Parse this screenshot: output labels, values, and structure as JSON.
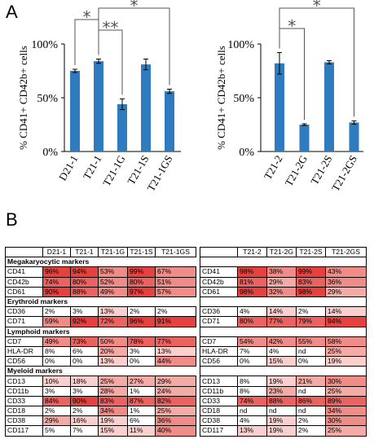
{
  "panels": {
    "a": "A",
    "b": "B"
  },
  "chart_data": [
    {
      "type": "bar",
      "ylabel": "% CD41+ CD42b+ cells",
      "yticks": [
        "0%",
        "50%",
        "100%"
      ],
      "ylim": [
        0,
        100
      ],
      "categories": [
        "D21-1",
        "T21-1",
        "T21-1G",
        "T21-1S",
        "T21-1GS"
      ],
      "values": [
        75,
        84,
        44,
        81,
        56
      ],
      "errors": [
        1.5,
        2,
        5,
        5,
        2
      ],
      "color": "#2e7bbf",
      "significance": [
        {
          "from": "T21-1",
          "to": "T21-1G",
          "label": "**"
        },
        {
          "from": "D21-1",
          "to": "T21-1",
          "label": "*"
        },
        {
          "from": "T21-1",
          "to": "T21-1GS",
          "label": "*"
        }
      ]
    },
    {
      "type": "bar",
      "ylabel": "% CD41+ CD42b+ cells",
      "yticks": [
        "0%",
        "50%",
        "100%"
      ],
      "ylim": [
        0,
        100
      ],
      "categories": [
        "T21-2",
        "T21-2G",
        "T21-2S",
        "T21-2GS"
      ],
      "values": [
        82,
        25,
        83,
        27
      ],
      "errors": [
        10,
        0.8,
        1.5,
        1.5
      ],
      "color": "#2e7bbf",
      "significance": [
        {
          "from": "T21-2",
          "to": "T21-2G",
          "label": "*"
        },
        {
          "from": "T21-2",
          "to": "T21-2GS",
          "label": "*"
        }
      ]
    }
  ],
  "table": {
    "left_headers": [
      "",
      "D21-1",
      "T21-1",
      "T21-1G",
      "T21-1S",
      "T21-1GS"
    ],
    "right_headers": [
      "",
      "T21-2",
      "T21-2G",
      "T21-2S",
      "T21-2GS"
    ],
    "sections": [
      {
        "title": "Megakaryocytic markers",
        "rows": [
          {
            "left": [
              "CD41",
              "96%",
              "94%",
              "53%",
              "99%",
              "67%"
            ],
            "right": [
              "CD41",
              "98%",
              "38%",
              "99%",
              "43%"
            ]
          },
          {
            "left": [
              "CD42b",
              "74%",
              "80%",
              "52%",
              "80%",
              "51%"
            ],
            "right": [
              "CD42b",
              "81%",
              "29%",
              "83%",
              "36%"
            ]
          },
          {
            "left": [
              "CD61",
              "90%",
              "88%",
              "49%",
              "97%",
              "57%"
            ],
            "right": [
              "CD61",
              "98%",
              "32%",
              "98%",
              "29%"
            ]
          }
        ]
      },
      {
        "title": "Erythroid markers",
        "rows": [
          {
            "left": [
              "CD36",
              "2%",
              "3%",
              "13%",
              "2%",
              "2%"
            ],
            "right": [
              "CD36",
              "4%",
              "14%",
              "2%",
              "14%"
            ]
          },
          {
            "left": [
              "CD71",
              "59%",
              "92%",
              "72%",
              "96%",
              "91%"
            ],
            "right": [
              "CD71",
              "80%",
              "77%",
              "79%",
              "94%"
            ]
          }
        ]
      },
      {
        "title": "Lymphoid markers",
        "rows": [
          {
            "left": [
              "CD7",
              "49%",
              "73%",
              "50%",
              "78%",
              "77%"
            ],
            "right": [
              "CD7",
              "54%",
              "42%",
              "55%",
              "58%"
            ]
          },
          {
            "left": [
              "HLA-DR",
              "8%",
              "6%",
              "20%",
              "3%",
              "13%"
            ],
            "right": [
              "HLA-DR",
              "7%",
              "4%",
              "nd",
              "25%"
            ]
          },
          {
            "left": [
              "CD56",
              "0%",
              "0%",
              "13%",
              "0%",
              "44%"
            ],
            "right": [
              "CD56",
              "0%",
              "15%",
              "0%",
              "19%"
            ]
          }
        ]
      },
      {
        "title": "Myeloid markers",
        "rows": [
          {
            "left": [
              "CD13",
              "10%",
              "18%",
              "25%",
              "27%",
              "29%"
            ],
            "right": [
              "CD13",
              "8%",
              "19%",
              "21%",
              "30%"
            ]
          },
          {
            "left": [
              "CD11b",
              "3%",
              "3%",
              "28%",
              "1%",
              "24%"
            ],
            "right": [
              "CD11b",
              "8%",
              "23%",
              "nd",
              "25%"
            ]
          },
          {
            "left": [
              "CD33",
              "84%",
              "90%",
              "83%",
              "87%",
              "82%"
            ],
            "right": [
              "CD33",
              "74%",
              "88%",
              "86%",
              "89%"
            ]
          },
          {
            "left": [
              "CD18",
              "2%",
              "2%",
              "34%",
              "1%",
              "25%"
            ],
            "right": [
              "CD18",
              "nd",
              "nd",
              "nd",
              "34%"
            ]
          },
          {
            "left": [
              "CD38",
              "29%",
              "16%",
              "19%",
              "6%",
              "36%"
            ],
            "right": [
              "CD38",
              "4%",
              "19%",
              "2%",
              "30%"
            ]
          },
          {
            "left": [
              "CD117",
              "5%",
              "7%",
              "15%",
              "11%",
              "40%"
            ],
            "right": [
              "CD117",
              "13%",
              "19%",
              "2%",
              "25%"
            ]
          }
        ]
      }
    ]
  }
}
